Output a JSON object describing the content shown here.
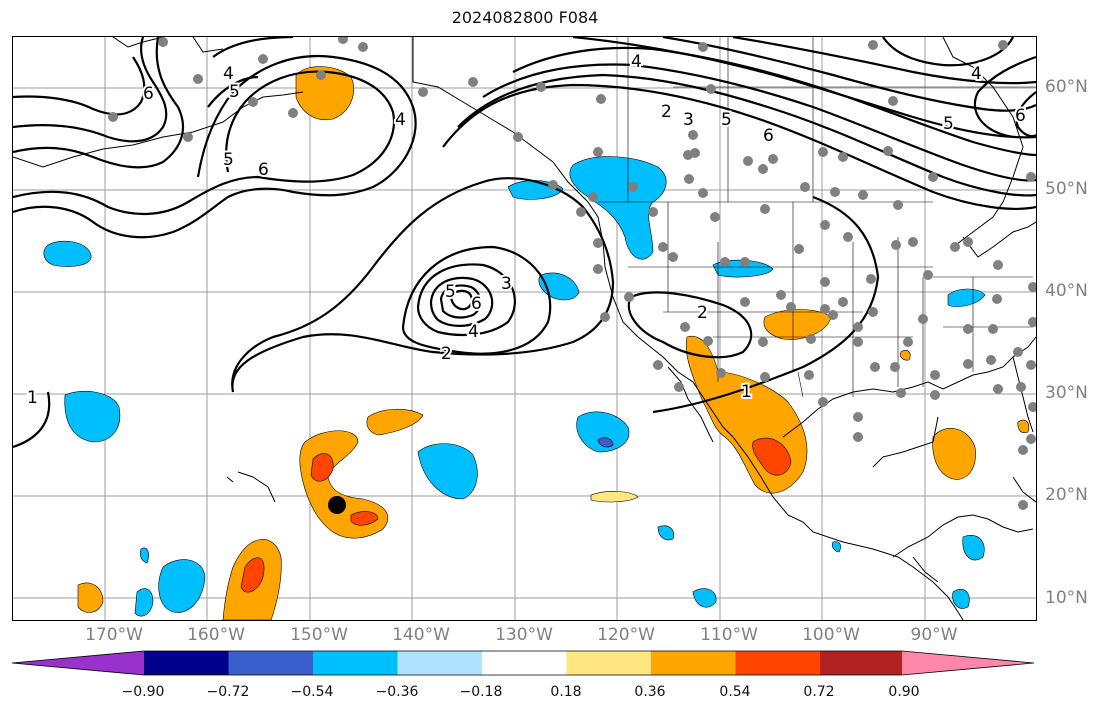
{
  "title": "2024082800 F084",
  "lat_labels": [
    {
      "text": "60°N"
    },
    {
      "text": "50°N"
    },
    {
      "text": "40°N"
    },
    {
      "text": "30°N"
    },
    {
      "text": "20°N"
    },
    {
      "text": "10°N"
    }
  ],
  "lon_labels": [
    {
      "text": "170°W"
    },
    {
      "text": "160°W"
    },
    {
      "text": "150°W"
    },
    {
      "text": "140°W"
    },
    {
      "text": "130°W"
    },
    {
      "text": "120°W"
    },
    {
      "text": "110°W"
    },
    {
      "text": "100°W"
    },
    {
      "text": "90°W"
    }
  ],
  "colorbar": {
    "ticks": [
      "−0.90",
      "−0.72",
      "−0.54",
      "−0.36",
      "−0.18",
      "0.18",
      "0.36",
      "0.54",
      "0.72",
      "0.90"
    ],
    "colors": [
      "#9932cc",
      "#00008b",
      "#3a5fcd",
      "#00bfff",
      "#b0e2ff",
      "#ffffff",
      "#ffe680",
      "#ffa500",
      "#ff4500",
      "#b22222",
      "#ff88aa"
    ]
  },
  "contour_labels": [
    "1",
    "2",
    "3",
    "4",
    "5",
    "6"
  ],
  "colors": {
    "strong_negative": "#00bfff",
    "weak_negative": "#b0e2ff",
    "strong_positive": "#ffa500",
    "very_strong_positive": "#ff4500",
    "deep_negative": "#3a5fcd",
    "station_dot": "#808080",
    "storm_marker": "#000000"
  }
}
